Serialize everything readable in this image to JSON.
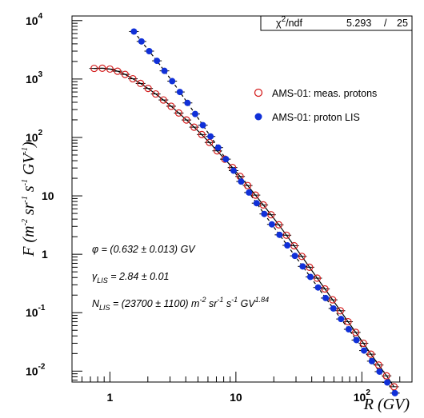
{
  "chart_data": {
    "type": "scatter",
    "xscale": "log",
    "yscale": "log",
    "xlim": [
      0.5,
      250
    ],
    "ylim": [
      0.0065,
      12000
    ],
    "grid": false,
    "legend_position": "top-right",
    "xlabel": "R (GV)",
    "ylabel": {
      "prefix": "F (m",
      "e1": "-2",
      "p2": " sr",
      "e2": "-1",
      "p3": " s",
      "e3": "-1",
      "p4": " GV",
      "e4": "-1",
      "suffix": ")"
    },
    "x_ticks": [
      {
        "value": 1,
        "label": "1"
      },
      {
        "value": 10,
        "label": "10"
      },
      {
        "value": 100,
        "label": "10",
        "exp": "2"
      }
    ],
    "y_ticks": [
      {
        "value": 0.01,
        "label": "10",
        "exp": "-2"
      },
      {
        "value": 0.1,
        "label": "10",
        "exp": "-1"
      },
      {
        "value": 1,
        "label": "1"
      },
      {
        "value": 10,
        "label": "10"
      },
      {
        "value": 100,
        "label": "10",
        "exp": "2"
      },
      {
        "value": 1000,
        "label": "10",
        "exp": "3"
      },
      {
        "value": 10000,
        "label": "10",
        "exp": "4"
      }
    ],
    "stats_box": {
      "label_main": "χ",
      "label_sup": "2",
      "label_rest": "/ndf",
      "chi2": "5.293",
      "sep": "/",
      "ndf": "25"
    },
    "series": [
      {
        "name": "AMS-01: meas. protons",
        "marker": "open-circle",
        "color": "#d42020",
        "x": [
          0.75,
          0.87,
          1.0,
          1.15,
          1.32,
          1.52,
          1.75,
          2.01,
          2.31,
          2.66,
          3.06,
          3.52,
          4.05,
          4.66,
          5.36,
          6.17,
          7.1,
          8.17,
          9.4,
          10.8,
          12.4,
          14.3,
          16.5,
          19.0,
          21.9,
          25.2,
          29.0,
          33.4,
          38.4,
          44.2,
          50.9,
          58.6,
          67.5,
          77.7,
          89.4,
          103,
          118,
          136,
          157,
          180
        ],
        "y": [
          1520,
          1530,
          1480,
          1360,
          1200,
          1010,
          840,
          690,
          555,
          438,
          342,
          262,
          199,
          150,
          112,
          82,
          59,
          42.5,
          30.5,
          21.5,
          15.0,
          10.3,
          7.0,
          4.75,
          3.2,
          2.12,
          1.4,
          0.92,
          0.6,
          0.39,
          0.255,
          0.166,
          0.108,
          0.07,
          0.046,
          0.03,
          0.0195,
          0.0127,
          0.0083,
          0.0054
        ]
      },
      {
        "name": "AMS-01: proton LIS",
        "marker": "filled-circle",
        "color": "#1030d8",
        "x": [
          1.55,
          1.78,
          2.05,
          2.36,
          2.71,
          3.12,
          3.59,
          4.13,
          4.75,
          5.47,
          6.29,
          7.24,
          8.33,
          9.59,
          11.0,
          12.7,
          14.6,
          16.8,
          19.3,
          22.2,
          25.6,
          29.4,
          33.9,
          39.0,
          44.9,
          51.6,
          59.4,
          68.3,
          78.6,
          90.5,
          104,
          120,
          138,
          159,
          183
        ],
        "y": [
          6500,
          4400,
          3000,
          2050,
          1380,
          920,
          600,
          390,
          252,
          162,
          104,
          67,
          42.5,
          27,
          17.6,
          11.4,
          7.5,
          4.9,
          3.25,
          2.15,
          1.42,
          0.94,
          0.62,
          0.41,
          0.27,
          0.178,
          0.118,
          0.078,
          0.052,
          0.034,
          0.0225,
          0.0148,
          0.0098,
          0.0064,
          0.0042
        ]
      }
    ],
    "annotations": [
      {
        "main": "φ = (0.632 ± 0.013) GV"
      },
      {
        "main": "γ",
        "sub": "LIS",
        "rest": " = 2.84 ± 0.01"
      },
      {
        "main": "N",
        "sub": "LIS",
        "rest": " = (23700 ± 1100) m",
        "e1": "-2",
        "r2": " sr",
        "e2": "-1",
        "r3": " s",
        "e3": "-1",
        "r4": " GV",
        "e4": "1.84"
      }
    ]
  }
}
